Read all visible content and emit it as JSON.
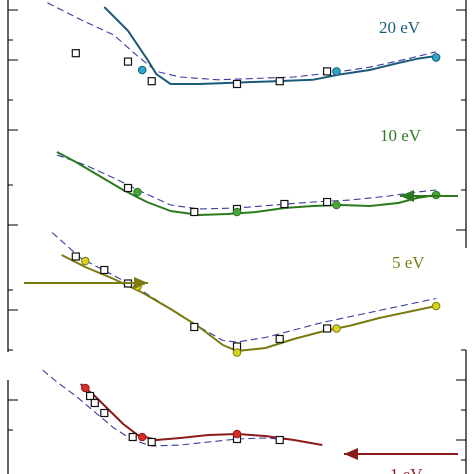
{
  "chart_data": {
    "type": "line",
    "title": "",
    "xlabel": "",
    "ylabel": "",
    "grid": false,
    "note": "Offset scattering curves; axis tick labels are not legible in the crop. Values below are normalized (x from left to right, y from low to high signal within each panel).",
    "panels": [
      {
        "label": "20 eV",
        "color": "#1a5b7a",
        "marker_fill": "#2aa6c8",
        "solid": [
          [
            0.22,
            0.95
          ],
          [
            0.27,
            0.78
          ],
          [
            0.31,
            0.58
          ],
          [
            0.33,
            0.47
          ],
          [
            0.36,
            0.4
          ],
          [
            0.42,
            0.4
          ],
          [
            0.5,
            0.41
          ],
          [
            0.58,
            0.42
          ],
          [
            0.66,
            0.43
          ],
          [
            0.72,
            0.47
          ],
          [
            0.78,
            0.5
          ],
          [
            0.84,
            0.55
          ],
          [
            0.88,
            0.58
          ],
          [
            0.92,
            0.6
          ]
        ],
        "dashed": [
          [
            0.1,
            0.98
          ],
          [
            0.17,
            0.86
          ],
          [
            0.24,
            0.75
          ],
          [
            0.29,
            0.6
          ],
          [
            0.33,
            0.49
          ],
          [
            0.38,
            0.45
          ],
          [
            0.46,
            0.43
          ],
          [
            0.54,
            0.44
          ],
          [
            0.62,
            0.45
          ],
          [
            0.7,
            0.48
          ],
          [
            0.78,
            0.52
          ],
          [
            0.86,
            0.58
          ],
          [
            0.92,
            0.63
          ]
        ],
        "squares": [
          [
            0.16,
            0.62
          ],
          [
            0.27,
            0.56
          ],
          [
            0.32,
            0.42
          ],
          [
            0.5,
            0.4
          ],
          [
            0.59,
            0.42
          ],
          [
            0.69,
            0.49
          ]
        ],
        "circles": [
          [
            0.3,
            0.5
          ],
          [
            0.71,
            0.49
          ],
          [
            0.92,
            0.59
          ]
        ],
        "early_points": [
          [
            0.18,
            0.64
          ],
          [
            0.2,
            0.56
          ],
          [
            0.22,
            0.5
          ]
        ]
      },
      {
        "label": "10 eV",
        "color": "#2b7a1e",
        "marker_fill": "#4aa33b",
        "solid": [
          [
            0.12,
            0.98
          ],
          [
            0.16,
            0.88
          ],
          [
            0.21,
            0.74
          ],
          [
            0.26,
            0.6
          ],
          [
            0.31,
            0.48
          ],
          [
            0.36,
            0.39
          ],
          [
            0.42,
            0.35
          ],
          [
            0.48,
            0.36
          ],
          [
            0.54,
            0.38
          ],
          [
            0.6,
            0.42
          ],
          [
            0.66,
            0.44
          ],
          [
            0.72,
            0.45
          ],
          [
            0.78,
            0.44
          ],
          [
            0.84,
            0.47
          ],
          [
            0.88,
            0.52
          ],
          [
            0.92,
            0.55
          ]
        ],
        "dashed": [
          [
            0.12,
            0.95
          ],
          [
            0.18,
            0.85
          ],
          [
            0.24,
            0.72
          ],
          [
            0.3,
            0.58
          ],
          [
            0.36,
            0.45
          ],
          [
            0.42,
            0.41
          ],
          [
            0.5,
            0.42
          ],
          [
            0.58,
            0.45
          ],
          [
            0.66,
            0.48
          ],
          [
            0.74,
            0.5
          ],
          [
            0.82,
            0.54
          ],
          [
            0.88,
            0.58
          ],
          [
            0.92,
            0.6
          ]
        ],
        "squares": [
          [
            0.27,
            0.62
          ],
          [
            0.41,
            0.38
          ],
          [
            0.5,
            0.41
          ],
          [
            0.6,
            0.46
          ],
          [
            0.69,
            0.48
          ]
        ],
        "circles": [
          [
            0.29,
            0.58
          ],
          [
            0.5,
            0.38
          ],
          [
            0.71,
            0.45
          ],
          [
            0.92,
            0.55
          ]
        ]
      },
      {
        "label": "5 eV",
        "color": "#7a7a10",
        "marker_fill": "#d8d21c",
        "solid": [
          [
            0.13,
            0.8
          ],
          [
            0.18,
            0.72
          ],
          [
            0.24,
            0.64
          ],
          [
            0.3,
            0.55
          ],
          [
            0.36,
            0.44
          ],
          [
            0.42,
            0.32
          ],
          [
            0.47,
            0.2
          ],
          [
            0.5,
            0.16
          ],
          [
            0.56,
            0.18
          ],
          [
            0.62,
            0.24
          ],
          [
            0.68,
            0.29
          ],
          [
            0.74,
            0.33
          ],
          [
            0.8,
            0.38
          ],
          [
            0.86,
            0.42
          ],
          [
            0.92,
            0.46
          ]
        ],
        "dashed": [
          [
            0.11,
            0.95
          ],
          [
            0.17,
            0.78
          ],
          [
            0.23,
            0.68
          ],
          [
            0.29,
            0.58
          ],
          [
            0.35,
            0.46
          ],
          [
            0.41,
            0.34
          ],
          [
            0.47,
            0.23
          ],
          [
            0.5,
            0.22
          ],
          [
            0.56,
            0.25
          ],
          [
            0.62,
            0.3
          ],
          [
            0.68,
            0.35
          ],
          [
            0.74,
            0.39
          ],
          [
            0.8,
            0.43
          ],
          [
            0.86,
            0.47
          ],
          [
            0.92,
            0.51
          ]
        ],
        "squares": [
          [
            0.16,
            0.79
          ],
          [
            0.22,
            0.7
          ],
          [
            0.27,
            0.61
          ],
          [
            0.41,
            0.32
          ],
          [
            0.5,
            0.19
          ],
          [
            0.59,
            0.24
          ],
          [
            0.69,
            0.31
          ]
        ],
        "circles": [
          [
            0.18,
            0.76
          ],
          [
            0.29,
            0.59
          ],
          [
            0.5,
            0.15
          ],
          [
            0.71,
            0.31
          ],
          [
            0.92,
            0.46
          ]
        ]
      },
      {
        "label": "1 eV",
        "color": "#8b1a1a",
        "marker_fill": "#d92a2a",
        "solid": [
          [
            0.17,
            0.96
          ],
          [
            0.2,
            0.84
          ],
          [
            0.23,
            0.7
          ],
          [
            0.26,
            0.56
          ],
          [
            0.29,
            0.45
          ],
          [
            0.33,
            0.4
          ],
          [
            0.38,
            0.42
          ],
          [
            0.44,
            0.45
          ],
          [
            0.5,
            0.46
          ],
          [
            0.56,
            0.44
          ],
          [
            0.62,
            0.4
          ],
          [
            0.68,
            0.35
          ]
        ],
        "dashed": [
          [
            0.09,
            1.1
          ],
          [
            0.12,
            0.98
          ],
          [
            0.16,
            0.84
          ],
          [
            0.2,
            0.68
          ],
          [
            0.24,
            0.52
          ],
          [
            0.28,
            0.4
          ],
          [
            0.32,
            0.34
          ],
          [
            0.38,
            0.35
          ],
          [
            0.44,
            0.38
          ],
          [
            0.5,
            0.41
          ],
          [
            0.56,
            0.42
          ],
          [
            0.62,
            0.4
          ],
          [
            0.68,
            0.35
          ]
        ],
        "squares": [
          [
            0.19,
            0.84
          ],
          [
            0.2,
            0.77
          ],
          [
            0.22,
            0.67
          ],
          [
            0.28,
            0.43
          ],
          [
            0.32,
            0.38
          ],
          [
            0.5,
            0.41
          ],
          [
            0.59,
            0.4
          ]
        ],
        "circles": [
          [
            0.18,
            0.92
          ],
          [
            0.3,
            0.43
          ],
          [
            0.5,
            0.46
          ]
        ]
      }
    ],
    "arrows": [
      {
        "panel": 1,
        "direction": "left",
        "color": "#2b7a1e"
      },
      {
        "panel": 2,
        "direction": "right",
        "color": "#7a7a10"
      },
      {
        "panel": 3,
        "direction": "left",
        "color": "#8b1a1a"
      }
    ]
  }
}
